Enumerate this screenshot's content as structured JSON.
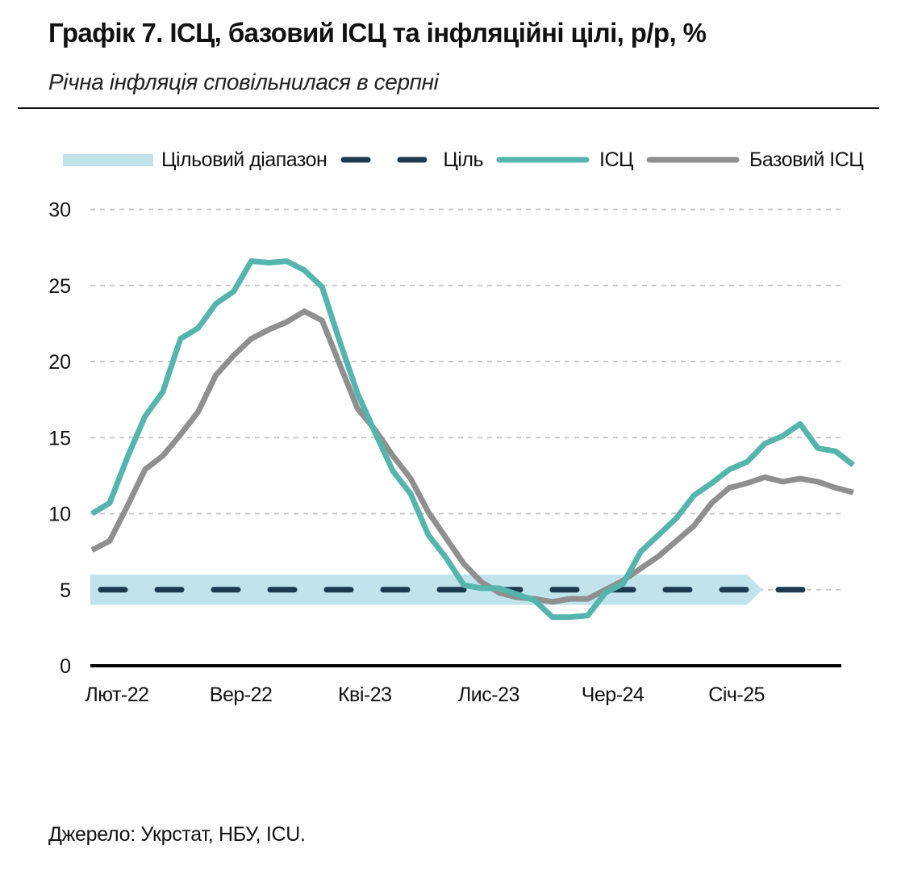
{
  "title": "Графік 7. ІСЦ, базовий ІСЦ та інфляційні цілі, р/р, %",
  "subtitle": "Річна інфляція сповільнилася в серпні",
  "source": "Джерело: Укрстат, НБУ, ICU.",
  "colors": {
    "cpi": "#55b5ad",
    "core": "#8f8f8f",
    "target": "#1c3a4f",
    "band": "#c1e4ec",
    "grid": "#c8c8c8",
    "axis": "#000000"
  },
  "chart_data": {
    "type": "line",
    "ylim": [
      0,
      30
    ],
    "yticks": [
      "0",
      "5",
      "10",
      "15",
      "20",
      "25",
      "30"
    ],
    "xlabels": [
      "Лют-22",
      "Вер-22",
      "Кві-23",
      "Лис-23",
      "Чер-24",
      "Січ-25"
    ],
    "xlabel_month_index": [
      1,
      8,
      15,
      22,
      29,
      36
    ],
    "months": [
      "Січ-22",
      "Лют-22",
      "Бер-22",
      "Кві-22",
      "Тра-22",
      "Чер-22",
      "Лип-22",
      "Сер-22",
      "Вер-22",
      "Жов-22",
      "Лис-22",
      "Гру-22",
      "Січ-23",
      "Лют-23",
      "Бер-23",
      "Кві-23",
      "Тра-23",
      "Чер-23",
      "Лип-23",
      "Сер-23",
      "Вер-23",
      "Жов-23",
      "Лис-23",
      "Гру-23",
      "Січ-24",
      "Лют-24",
      "Бер-24",
      "Кві-24",
      "Тра-24",
      "Чер-24",
      "Лип-24",
      "Сер-24",
      "Вер-24",
      "Жов-24",
      "Лис-24",
      "Гру-24",
      "Січ-25",
      "Лют-25",
      "Бер-25",
      "Кві-25",
      "Тра-25",
      "Чер-25",
      "Лип-25",
      "Сер-25"
    ],
    "legend": [
      "Цільовий діапазон",
      "Ціль",
      "ІСЦ",
      "Базовий ІСЦ"
    ],
    "series": [
      {
        "name": "ІСЦ",
        "values": [
          10.0,
          10.7,
          13.7,
          16.4,
          18.0,
          21.5,
          22.2,
          23.8,
          24.6,
          26.6,
          26.5,
          26.6,
          26.0,
          24.9,
          21.3,
          17.9,
          15.3,
          12.8,
          11.3,
          8.6,
          7.1,
          5.3,
          5.1,
          5.1,
          4.7,
          4.3,
          3.2,
          3.2,
          3.3,
          4.8,
          5.4,
          7.5,
          8.6,
          9.7,
          11.2,
          12.0,
          12.9,
          13.4,
          14.6,
          15.1,
          15.9,
          14.3,
          14.1,
          13.2
        ]
      },
      {
        "name": "Базовий ІСЦ",
        "values": [
          7.6,
          8.2,
          10.5,
          12.9,
          13.8,
          15.2,
          16.7,
          19.1,
          20.4,
          21.5,
          22.1,
          22.6,
          23.3,
          22.7,
          19.8,
          16.9,
          15.5,
          13.8,
          12.3,
          10.1,
          8.4,
          6.7,
          5.5,
          4.8,
          4.5,
          4.4,
          4.2,
          4.4,
          4.4,
          5.0,
          5.6,
          6.4,
          7.2,
          8.2,
          9.2,
          10.7,
          11.7,
          12.0,
          12.4,
          12.1,
          12.3,
          12.1,
          11.7,
          11.4
        ]
      }
    ],
    "target": {
      "name": "Ціль",
      "value": 5.0
    },
    "target_range": {
      "name": "Цільовий діапазон",
      "low": 4.0,
      "high": 6.0,
      "end_month_index": 37
    }
  }
}
